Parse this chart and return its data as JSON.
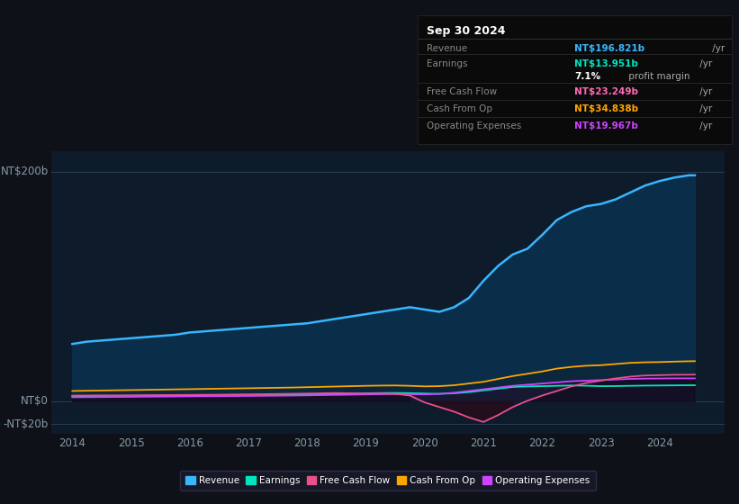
{
  "bg_color": "#0e1117",
  "plot_bg_color": "#0d1b2a",
  "grid_color": "#1e2d3d",
  "title_box": {
    "date": "Sep 30 2024",
    "rows": [
      {
        "label": "Revenue",
        "value": "NT$196.821b",
        "value_color": "#38b6ff",
        "suffix": " /yr",
        "bold": true
      },
      {
        "label": "Earnings",
        "value": "NT$13.951b",
        "value_color": "#00e5c0",
        "suffix": " /yr",
        "bold": true
      },
      {
        "label": "",
        "value": "7.1%",
        "value_color": "#ffffff",
        "suffix": " profit margin",
        "bold": true
      },
      {
        "label": "Free Cash Flow",
        "value": "NT$23.249b",
        "value_color": "#ff69b4",
        "suffix": " /yr",
        "bold": true
      },
      {
        "label": "Cash From Op",
        "value": "NT$34.838b",
        "value_color": "#ffa500",
        "suffix": " /yr",
        "bold": true
      },
      {
        "label": "Operating Expenses",
        "value": "NT$19.967b",
        "value_color": "#cc44ff",
        "suffix": " /yr",
        "bold": true
      }
    ]
  },
  "x_years": [
    2014.0,
    2014.25,
    2014.5,
    2014.75,
    2015.0,
    2015.25,
    2015.5,
    2015.75,
    2016.0,
    2016.25,
    2016.5,
    2016.75,
    2017.0,
    2017.25,
    2017.5,
    2017.75,
    2018.0,
    2018.25,
    2018.5,
    2018.75,
    2019.0,
    2019.25,
    2019.5,
    2019.75,
    2020.0,
    2020.25,
    2020.5,
    2020.75,
    2021.0,
    2021.25,
    2021.5,
    2021.75,
    2022.0,
    2022.25,
    2022.5,
    2022.75,
    2023.0,
    2023.25,
    2023.5,
    2023.75,
    2024.0,
    2024.25,
    2024.5,
    2024.6
  ],
  "revenue": [
    50,
    52,
    53,
    54,
    55,
    56,
    57,
    58,
    60,
    61,
    62,
    63,
    64,
    65,
    66,
    67,
    68,
    70,
    72,
    74,
    76,
    78,
    80,
    82,
    80,
    78,
    82,
    90,
    105,
    118,
    128,
    133,
    145,
    158,
    165,
    170,
    172,
    176,
    182,
    188,
    192,
    195,
    197,
    197
  ],
  "earnings": [
    4.5,
    4.6,
    4.7,
    4.8,
    4.9,
    5.0,
    5.1,
    5.2,
    5.3,
    5.4,
    5.5,
    5.6,
    5.7,
    5.8,
    5.9,
    6.0,
    6.1,
    6.3,
    6.5,
    6.7,
    7.0,
    7.2,
    7.3,
    7.1,
    6.8,
    6.5,
    7.0,
    8.0,
    9.5,
    11.0,
    12.5,
    13.0,
    13.2,
    13.5,
    13.8,
    13.6,
    13.2,
    13.3,
    13.5,
    13.7,
    13.8,
    13.9,
    14.0,
    14.0
  ],
  "free_cash_flow": [
    5.0,
    5.1,
    5.2,
    5.1,
    5.2,
    5.3,
    5.4,
    5.5,
    5.6,
    5.7,
    5.8,
    5.9,
    6.0,
    6.2,
    6.4,
    6.6,
    6.8,
    7.0,
    7.2,
    7.0,
    6.8,
    6.9,
    6.5,
    5.0,
    -1.0,
    -5.0,
    -9.0,
    -14.0,
    -18.0,
    -12.0,
    -5.0,
    0.5,
    5.0,
    9.0,
    13.0,
    16.0,
    18.0,
    20.0,
    21.5,
    22.5,
    22.8,
    23.1,
    23.2,
    23.3
  ],
  "cash_from_op": [
    9.0,
    9.2,
    9.4,
    9.6,
    9.8,
    10.0,
    10.2,
    10.4,
    10.6,
    10.8,
    11.0,
    11.2,
    11.4,
    11.6,
    11.8,
    12.0,
    12.3,
    12.6,
    12.9,
    13.2,
    13.5,
    13.7,
    13.8,
    13.5,
    13.0,
    13.2,
    14.0,
    15.5,
    17.0,
    19.5,
    22.0,
    24.0,
    26.0,
    28.5,
    30.0,
    31.0,
    31.5,
    32.5,
    33.5,
    34.0,
    34.2,
    34.6,
    34.9,
    35.0
  ],
  "op_expenses": [
    3.5,
    3.6,
    3.7,
    3.8,
    3.9,
    4.0,
    4.1,
    4.2,
    4.3,
    4.4,
    4.5,
    4.6,
    4.7,
    4.8,
    4.9,
    5.0,
    5.2,
    5.4,
    5.6,
    5.8,
    6.0,
    6.2,
    6.4,
    6.2,
    6.0,
    6.5,
    7.5,
    9.0,
    10.5,
    12.0,
    13.5,
    14.5,
    15.5,
    16.5,
    17.5,
    18.0,
    18.5,
    19.0,
    19.5,
    19.8,
    19.9,
    20.0,
    20.0,
    20.0
  ],
  "revenue_color": "#38b6ff",
  "earnings_color": "#00e5c0",
  "fcf_color": "#e8508a",
  "cfop_color": "#ffa500",
  "opex_color": "#cc44ff",
  "x_ticks": [
    2014,
    2015,
    2016,
    2017,
    2018,
    2019,
    2020,
    2021,
    2022,
    2023,
    2024
  ],
  "y_label_200": "NT$200b",
  "y_label_0": "NT$0",
  "y_label_neg20": "-NT$20b",
  "ylim": [
    -28,
    218
  ],
  "xlim": [
    2013.65,
    2025.1
  ]
}
